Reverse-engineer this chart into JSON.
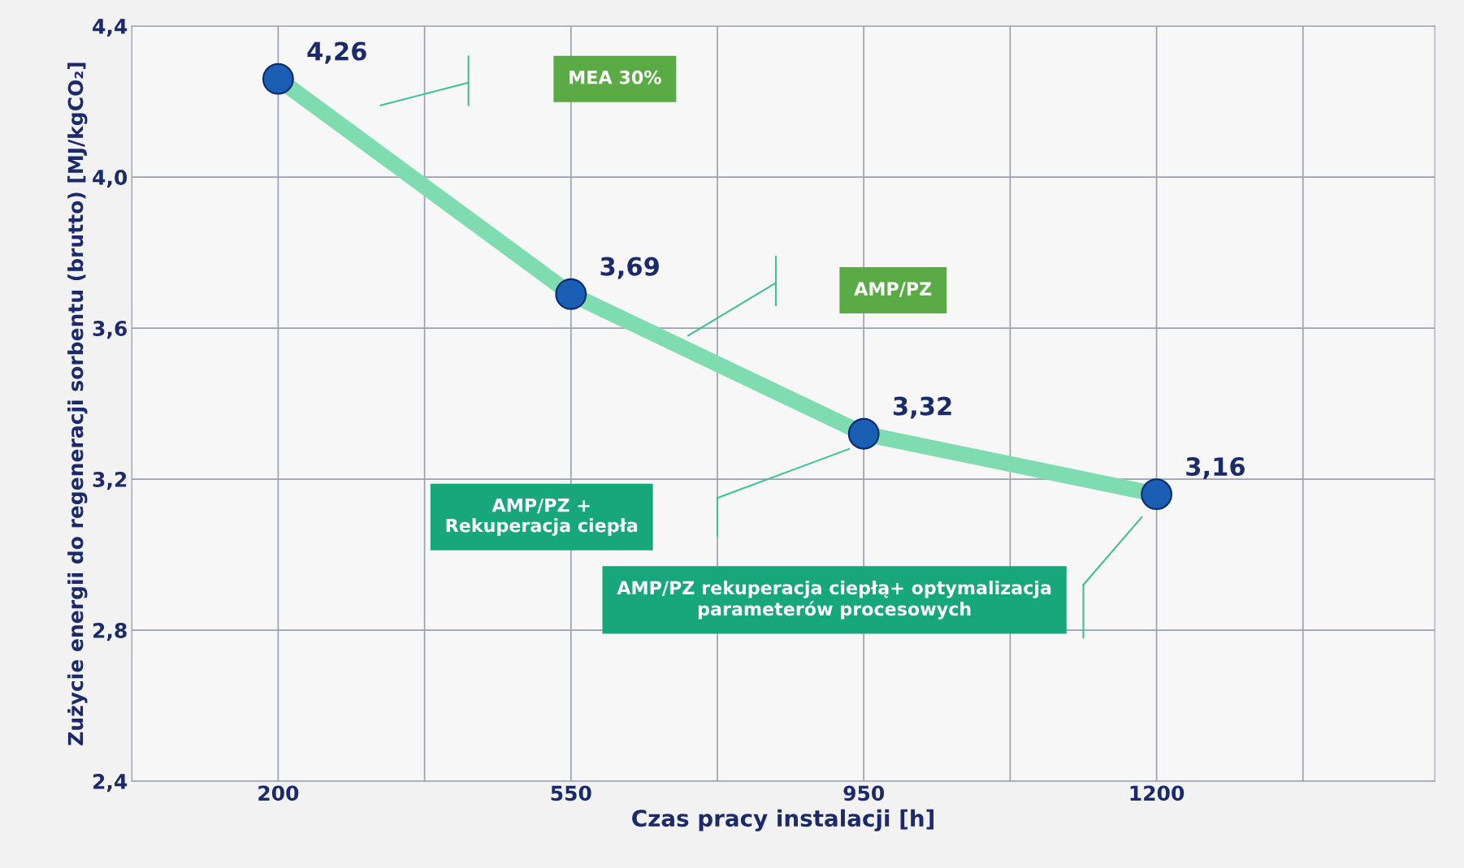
{
  "chart_data": {
    "type": "line",
    "xlabel": "Czas pracy instalacji [h]",
    "ylabel": "Zużycie energii do regeneracji sorbentu (brutto) [MJ/kgCO₂]",
    "categories": [
      "200",
      "550",
      "950",
      "1200"
    ],
    "series": [
      {
        "color": "#1a5fb4",
        "values": [
          4.26,
          3.69,
          3.32,
          3.16
        ],
        "value_labels": [
          "4,26",
          "3,69",
          "3,32",
          "3,16"
        ]
      }
    ],
    "marker": "circle",
    "ylim": [
      2.4,
      4.4
    ],
    "yticks": [
      {
        "value": 2.4,
        "label": "2,4"
      },
      {
        "value": 2.8,
        "label": "2,8"
      },
      {
        "value": 3.2,
        "label": "3,2"
      },
      {
        "value": 3.6,
        "label": "3,6"
      },
      {
        "value": 4.0,
        "label": "4,0"
      },
      {
        "value": 4.4,
        "label": "4,4"
      }
    ],
    "grid": true,
    "annotations": [
      "MEA 30%",
      "AMP/PZ",
      "AMP/PZ +\nRekuperacja ciepła",
      "AMP/PZ rekuperacja ciepłą+ optymalizacja\nparameterów procesowych"
    ]
  }
}
